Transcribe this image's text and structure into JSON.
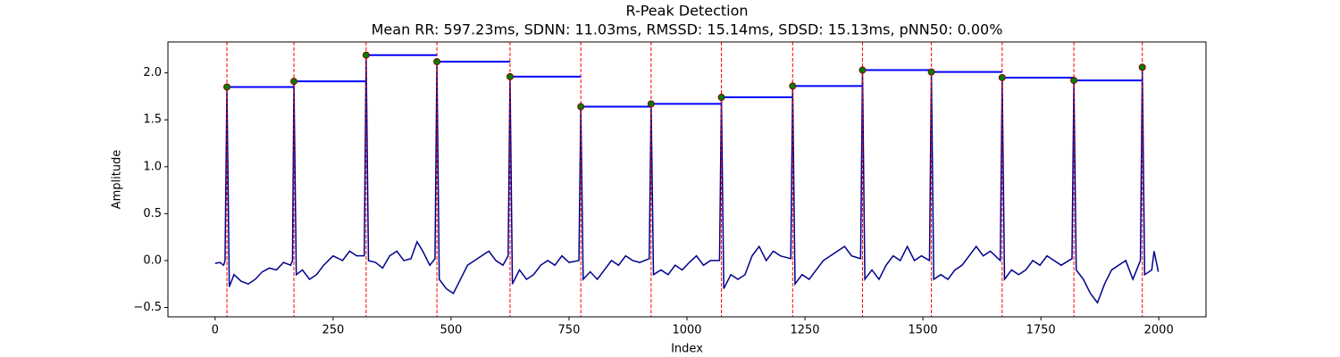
{
  "chart_data": {
    "type": "line",
    "title": "R-Peak Detection",
    "subtitle": "Mean RR: 597.23ms, SDNN: 11.03ms, RMSSD: 15.14ms, SDSD: 15.13ms, pNN50: 0.00%",
    "x_label": "Index",
    "y_label": "Amplitude",
    "color": "#00008b",
    "x": [
      0,
      10,
      18,
      21,
      25,
      30,
      40,
      55,
      70,
      85,
      100,
      115,
      130,
      145,
      160,
      164,
      167,
      172,
      185,
      200,
      215,
      230,
      250,
      270,
      285,
      300,
      316,
      320,
      325,
      340,
      355,
      370,
      385,
      400,
      415,
      428,
      440,
      455,
      466,
      470,
      475,
      490,
      505,
      520,
      535,
      550,
      565,
      580,
      595,
      610,
      621,
      625,
      630,
      645,
      660,
      675,
      690,
      705,
      720,
      735,
      750,
      771,
      775,
      780,
      795,
      810,
      825,
      840,
      855,
      870,
      885,
      900,
      920,
      924,
      929,
      945,
      960,
      975,
      990,
      1005,
      1020,
      1035,
      1050,
      1069,
      1073,
      1078,
      1093,
      1108,
      1123,
      1138,
      1153,
      1168,
      1183,
      1198,
      1220,
      1224,
      1229,
      1244,
      1259,
      1274,
      1289,
      1304,
      1319,
      1334,
      1349,
      1368,
      1372,
      1377,
      1392,
      1407,
      1422,
      1437,
      1452,
      1467,
      1482,
      1497,
      1514,
      1518,
      1523,
      1538,
      1553,
      1568,
      1583,
      1598,
      1613,
      1628,
      1643,
      1664,
      1668,
      1673,
      1688,
      1703,
      1718,
      1733,
      1748,
      1763,
      1778,
      1793,
      1816,
      1820,
      1825,
      1840,
      1855,
      1870,
      1885,
      1900,
      1915,
      1930,
      1945,
      1961,
      1965,
      1970,
      1985,
      1990,
      1999
    ],
    "values": [
      -0.03,
      -0.02,
      -0.05,
      0,
      1.85,
      -0.28,
      -0.15,
      -0.22,
      -0.25,
      -0.2,
      -0.12,
      -0.08,
      -0.1,
      -0.02,
      -0.05,
      0,
      1.91,
      -0.15,
      -0.1,
      -0.2,
      -0.15,
      -0.05,
      0.05,
      0,
      0.1,
      0.05,
      0.05,
      2.19,
      0,
      -0.02,
      -0.08,
      0.05,
      0.1,
      0,
      0.02,
      0.2,
      0.1,
      -0.05,
      0.02,
      2.12,
      -0.2,
      -0.3,
      -0.35,
      -0.2,
      -0.05,
      0,
      0.05,
      0.1,
      0,
      -0.05,
      0.05,
      1.96,
      -0.25,
      -0.1,
      -0.2,
      -0.15,
      -0.05,
      0,
      -0.05,
      0.05,
      -0.02,
      0,
      1.64,
      -0.2,
      -0.12,
      -0.2,
      -0.1,
      0,
      -0.05,
      0.05,
      0,
      -0.02,
      0.02,
      1.67,
      -0.15,
      -0.1,
      -0.15,
      -0.05,
      -0.1,
      -0.02,
      0.05,
      -0.05,
      0,
      0,
      1.74,
      -0.3,
      -0.15,
      -0.2,
      -0.15,
      0.05,
      0.15,
      0,
      0.1,
      0.05,
      0.02,
      1.86,
      -0.25,
      -0.15,
      -0.2,
      -0.1,
      0,
      0.05,
      0.1,
      0.15,
      0.05,
      0.02,
      2.03,
      -0.2,
      -0.1,
      -0.2,
      -0.05,
      0.05,
      0,
      0.15,
      0,
      0.05,
      0,
      2.01,
      -0.2,
      -0.15,
      -0.2,
      -0.1,
      -0.05,
      0.05,
      0.15,
      0.05,
      0.1,
      0,
      1.95,
      -0.2,
      -0.1,
      -0.15,
      -0.1,
      0,
      -0.05,
      0.05,
      0,
      -0.05,
      0.02,
      1.92,
      -0.1,
      -0.2,
      -0.35,
      -0.45,
      -0.25,
      -0.1,
      -0.05,
      0,
      -0.2,
      0,
      2.06,
      -0.15,
      -0.1,
      0.1,
      -0.12
    ],
    "peaks": {
      "x": [
        25,
        167,
        320,
        470,
        625,
        775,
        924,
        1073,
        1224,
        1372,
        1518,
        1668,
        1820,
        1965
      ],
      "values": [
        1.85,
        1.91,
        2.19,
        2.12,
        1.96,
        1.64,
        1.67,
        1.74,
        1.86,
        2.03,
        2.01,
        1.95,
        1.92,
        2.06
      ],
      "color": "#008000",
      "edge_color": "#8b0000",
      "line_color": "#ff0000",
      "interval_color": "#0000ff"
    },
    "xlim": [
      -100,
      2100
    ],
    "ylim": [
      -0.6,
      2.33
    ],
    "xticks": [
      0,
      250,
      500,
      750,
      1000,
      1250,
      1500,
      1750,
      2000
    ],
    "yticks": [
      {
        "value": -0.5,
        "label": "−0.5"
      },
      {
        "value": 0,
        "label": "0.0"
      },
      {
        "value": 0.5,
        "label": "0.5"
      },
      {
        "value": 1,
        "label": "1.0"
      },
      {
        "value": 1.5,
        "label": "1.5"
      },
      {
        "value": 2,
        "label": "2.0"
      }
    ]
  }
}
